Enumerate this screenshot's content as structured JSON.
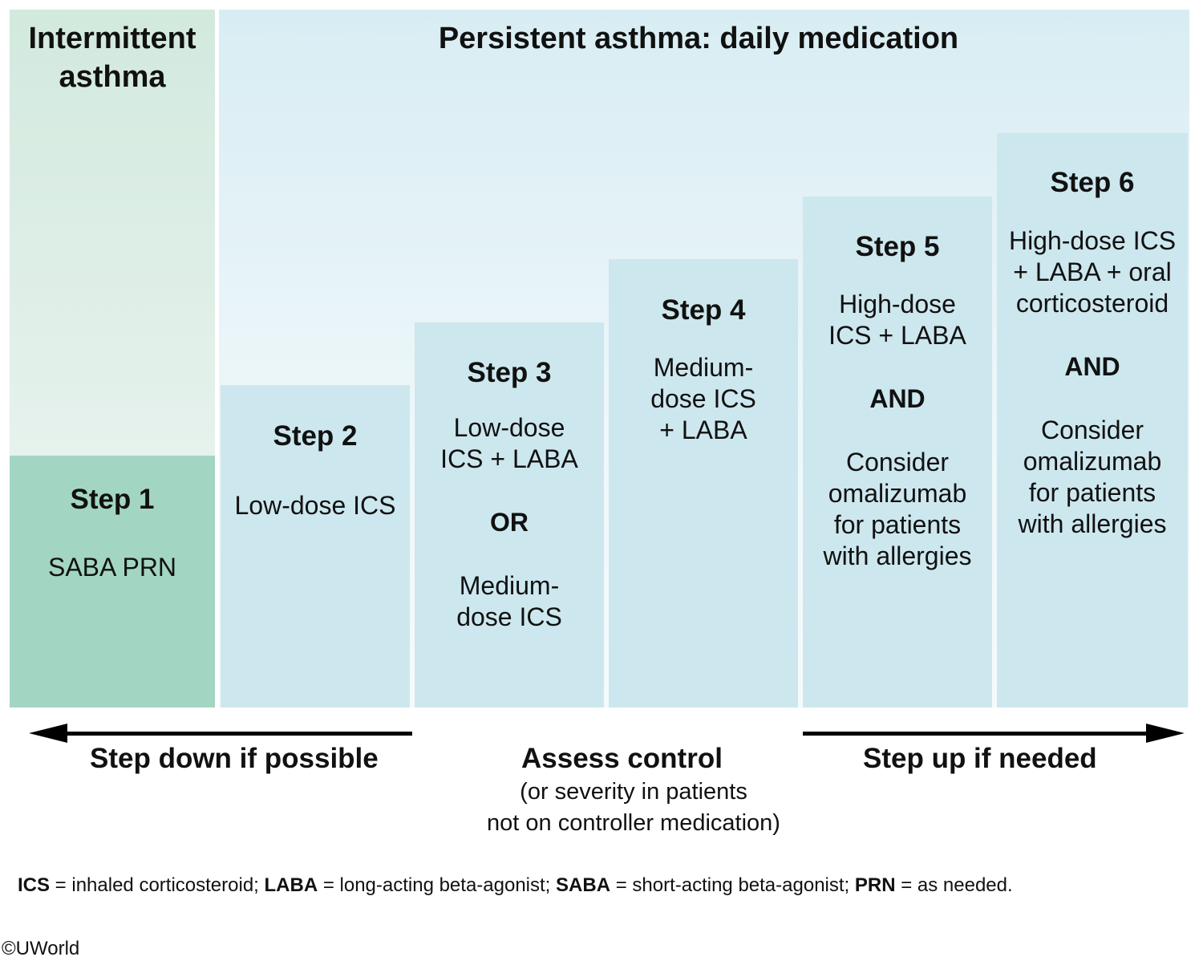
{
  "headers": {
    "intermittent": [
      "Intermittent",
      "asthma"
    ],
    "persistent": "Persistent asthma: daily medication"
  },
  "steps": [
    {
      "title": "Step 1",
      "lines": [
        "SABA PRN"
      ]
    },
    {
      "title": "Step 2",
      "lines": [
        "Low-dose ICS"
      ]
    },
    {
      "title": "Step 3",
      "lines": [
        "Low-dose",
        "ICS + LABA",
        "OR",
        "Medium-",
        "dose ICS"
      ]
    },
    {
      "title": "Step 4",
      "lines": [
        "Medium-",
        "dose ICS",
        "+ LABA"
      ]
    },
    {
      "title": "Step 5",
      "lines": [
        "High-dose",
        "ICS + LABA",
        "AND",
        "Consider",
        "omalizumab",
        "for patients",
        "with allergies"
      ]
    },
    {
      "title": "Step 6",
      "lines": [
        "High-dose ICS",
        "+ LABA + oral",
        "corticosteroid",
        "AND",
        "Consider",
        "omalizumab",
        "for patients",
        "with allergies"
      ]
    }
  ],
  "bottom": {
    "step_down": "Step down if possible",
    "assess": "Assess control",
    "assess_note": [
      "(or severity in patients",
      "not on controller medication)"
    ],
    "step_up": "Step up if needed"
  },
  "abbreviations": [
    {
      "abbr": "ICS",
      "def": " = inhaled corticosteroid; "
    },
    {
      "abbr": "LABA",
      "def": " = long-acting beta-agonist; "
    },
    {
      "abbr": "SABA",
      "def": " = short-acting beta-agonist; "
    },
    {
      "abbr": "PRN",
      "def": " = as needed."
    }
  ],
  "copyright": "©UWorld"
}
